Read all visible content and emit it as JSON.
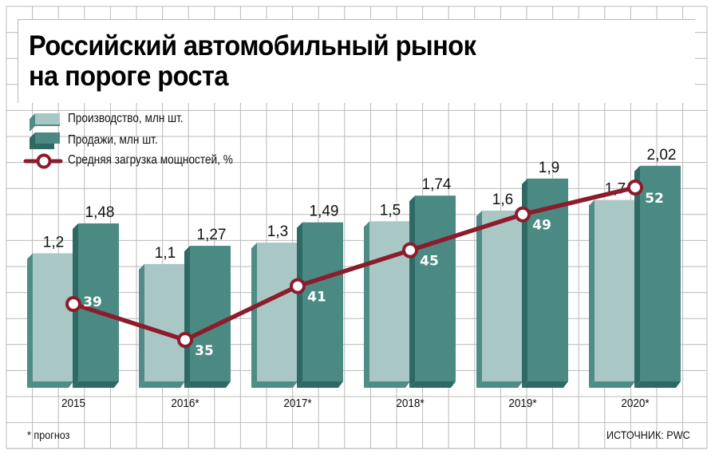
{
  "title": {
    "line1": "Российский автомобильный рынок",
    "line2": "на пороге роста"
  },
  "legend": {
    "production": "Производство, млн шт.",
    "sales": "Продажи, млн шт.",
    "utilization": "Средняя загрузка мощностей, %"
  },
  "footnote": "* прогноз",
  "source": "ИСТОЧНИК: PWC",
  "colors": {
    "production_front": "#a9c7c5",
    "production_side": "#4f8c85",
    "sales_front": "#4a8a83",
    "sales_side": "#2e6a63",
    "line": "#8c1c2c",
    "grid": "#b9b9b9"
  },
  "chart_data": {
    "type": "bar",
    "title": "Российский автомобильный рынок на пороге роста",
    "categories": [
      "2015",
      "2016*",
      "2017*",
      "2018*",
      "2019*",
      "2020*"
    ],
    "series": [
      {
        "name": "Производство, млн шт.",
        "type": "bar",
        "values": [
          1.2,
          1.1,
          1.3,
          1.5,
          1.6,
          1.7
        ],
        "labels": [
          "1,2",
          "1,1",
          "1,3",
          "1,5",
          "1,6",
          "1,7"
        ]
      },
      {
        "name": "Продажи, млн шт.",
        "type": "bar",
        "values": [
          1.48,
          1.27,
          1.49,
          1.74,
          1.9,
          2.02
        ],
        "labels": [
          "1,48",
          "1,27",
          "1,49",
          "1,74",
          "1,9",
          "2,02"
        ]
      },
      {
        "name": "Средняя загрузка мощностей, %",
        "type": "line",
        "values": [
          39,
          35,
          41,
          45,
          49,
          52
        ],
        "labels": [
          "39",
          "35",
          "41",
          "45",
          "49",
          "52"
        ]
      }
    ],
    "xlabel": "",
    "ylabel": "",
    "grid": true,
    "legend_position": "top-left",
    "annotations": [
      "* прогноз",
      "ИСТОЧНИК: PWC"
    ]
  }
}
